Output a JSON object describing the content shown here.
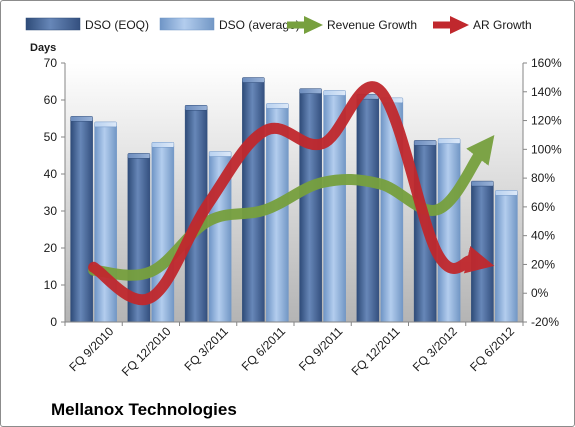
{
  "chart_data": {
    "type": "bar",
    "title": "Mellanox Technologies",
    "ylabel": "Days",
    "categories": [
      "FQ 9/2010",
      "FQ 12/2010",
      "FQ 3/2011",
      "FQ 6/2011",
      "FQ 9/2011",
      "FQ 12/2011",
      "FQ 3/2012",
      "FQ 6/2012"
    ],
    "series": [
      {
        "name": "DSO (EOQ)",
        "type": "bar",
        "axis": "left",
        "values": [
          54.5,
          44.5,
          57.5,
          65,
          62,
          60.5,
          48,
          37
        ],
        "color": "#4a6a99"
      },
      {
        "name": "DSO (average)",
        "type": "bar",
        "axis": "left",
        "values": [
          53,
          47.5,
          45,
          58,
          61.5,
          59.5,
          48.5,
          34.5
        ],
        "color": "#8eb3e0"
      },
      {
        "name": "Revenue Growth",
        "type": "line",
        "axis": "right",
        "unit": "%",
        "values": [
          16,
          15,
          50,
          58,
          77,
          76,
          58,
          110
        ],
        "color": "#77a03e"
      },
      {
        "name": "AR Growth",
        "type": "line",
        "axis": "right",
        "unit": "%",
        "values": [
          18,
          -3,
          62,
          113,
          104,
          141,
          28,
          19
        ],
        "color": "#c0282d"
      }
    ],
    "ylim": [
      0,
      70
    ],
    "yticks": [
      0,
      10,
      20,
      30,
      40,
      50,
      60,
      70
    ],
    "y2lim": [
      -20,
      160
    ],
    "y2ticks": [
      -20,
      0,
      20,
      40,
      60,
      80,
      100,
      120,
      140,
      160
    ],
    "y2ticklabels": [
      "-20%",
      "0%",
      "20%",
      "40%",
      "60%",
      "80%",
      "100%",
      "120%",
      "140%",
      "160%"
    ],
    "legend_position": "top",
    "grid": false,
    "plot_background": "vertical gradient white to gray"
  }
}
